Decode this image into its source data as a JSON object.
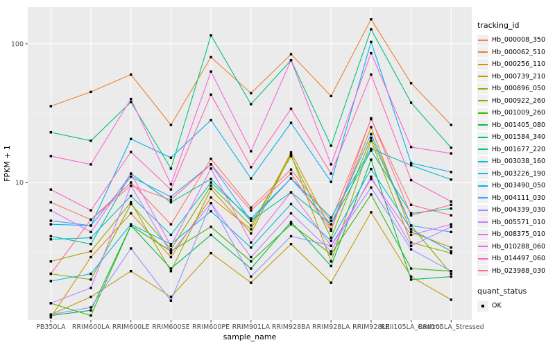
{
  "chart_data": {
    "type": "line",
    "title": "",
    "xlabel": "sample_name",
    "ylabel": "FPKM + 1",
    "y_scale": "log10",
    "y_ticks": [
      100,
      10
    ],
    "y_tick_labels": [
      "100",
      "10"
    ],
    "y_minor": [
      31.62,
      3.162
    ],
    "ylim": [
      1.02,
      185
    ],
    "grid": true,
    "legend_position": "right",
    "categories": [
      "PB350LA",
      "RRIM600LA",
      "RRIM600LE",
      "RRIM600SE",
      "RRIM600PE",
      "RRIM901LA",
      "RRIM928BA",
      "RRIM928LA",
      "RRIM928LE",
      "RRII105LA_Control",
      "RRII105LA_Stressed"
    ],
    "series": [
      {
        "name": "Hb_000008_350",
        "color": "#F8766D",
        "values": [
          7.2,
          5.4,
          10.0,
          5.0,
          14.8,
          6.6,
          12.4,
          5.3,
          28.6,
          6.9,
          5.8
        ]
      },
      {
        "name": "Hb_000062_510",
        "color": "#EA8331",
        "values": [
          35.5,
          45,
          60,
          26,
          80,
          44,
          84,
          42,
          150,
          52,
          26
        ]
      },
      {
        "name": "Hb_000256_110",
        "color": "#D89000",
        "values": [
          1.07,
          2.9,
          6.0,
          2.9,
          7.8,
          4.6,
          16.5,
          4.6,
          25,
          4.4,
          3.4
        ]
      },
      {
        "name": "Hb_000739_210",
        "color": "#C09B00",
        "values": [
          1.12,
          1.5,
          2.3,
          1.5,
          3.1,
          1.9,
          3.6,
          1.9,
          6.1,
          2.1,
          1.43
        ]
      },
      {
        "name": "Hb_000896_050",
        "color": "#A3A500",
        "values": [
          2.7,
          3.2,
          7.2,
          2.3,
          9.0,
          4.3,
          16.0,
          2.7,
          20,
          3.7,
          3.1
        ]
      },
      {
        "name": "Hb_000922_260",
        "color": "#7CAE00",
        "values": [
          2.2,
          2.0,
          7.0,
          3.3,
          9.5,
          4.9,
          15.5,
          4.0,
          21,
          4.9,
          2.2
        ]
      },
      {
        "name": "Hb_001009_260",
        "color": "#39B600",
        "values": [
          1.35,
          1.1,
          4.9,
          3.2,
          4.8,
          2.7,
          5.0,
          3.05,
          8.2,
          2.4,
          2.3
        ]
      },
      {
        "name": "Hb_001405_080",
        "color": "#00BB4E",
        "values": [
          1.1,
          1.2,
          4.9,
          2.4,
          4.2,
          2.4,
          5.2,
          2.5,
          14.6,
          2.0,
          2.1
        ]
      },
      {
        "name": "Hb_001584_340",
        "color": "#00BF7D",
        "values": [
          23,
          20,
          38,
          12.6,
          115,
          36.7,
          76,
          18.4,
          127,
          37.6,
          17.8
        ]
      },
      {
        "name": "Hb_001677_220",
        "color": "#00C1A3",
        "values": [
          4.1,
          3.6,
          11.6,
          7.2,
          10.6,
          5.3,
          8.5,
          5.0,
          17,
          6.0,
          6.5
        ]
      },
      {
        "name": "Hb_003038_160",
        "color": "#00BFC4",
        "values": [
          3.9,
          4.0,
          8.0,
          4.2,
          10.0,
          5.5,
          10.7,
          5.6,
          17.5,
          13.3,
          10.5
        ]
      },
      {
        "name": "Hb_003226_190",
        "color": "#00BAE0",
        "values": [
          1.95,
          2.2,
          5.0,
          3.6,
          6.2,
          3.4,
          7.0,
          3.8,
          12.5,
          4.6,
          3.2
        ]
      },
      {
        "name": "Hb_003490_050",
        "color": "#00B0F6",
        "values": [
          5.0,
          4.9,
          20.6,
          15.1,
          28.2,
          10.7,
          26.9,
          10.1,
          103,
          13.8,
          11.9
        ]
      },
      {
        "name": "Hb_004111_030",
        "color": "#35A2FF",
        "values": [
          5.3,
          4.9,
          11.0,
          7.9,
          13.5,
          5.3,
          10.7,
          5.0,
          22.3,
          4.9,
          4.4
        ]
      },
      {
        "name": "Hb_004339_030",
        "color": "#9590FF",
        "values": [
          1.12,
          1.26,
          3.35,
          1.41,
          7.1,
          2.1,
          4.1,
          3.5,
          9.2,
          3.3,
          2.3
        ]
      },
      {
        "name": "Hb_005571_010",
        "color": "#C77CFF",
        "values": [
          1.35,
          1.74,
          9.5,
          3.1,
          7.1,
          2.9,
          6.0,
          3.2,
          11.0,
          3.5,
          4.8
        ]
      },
      {
        "name": "Hb_008375_010",
        "color": "#E76BF3",
        "values": [
          6.3,
          4.4,
          11.6,
          3.5,
          12.6,
          3.7,
          8.5,
          3.5,
          10.6,
          4.2,
          5.0
        ]
      },
      {
        "name": "Hb_010288_060",
        "color": "#FA62DB",
        "values": [
          15.5,
          13.5,
          40,
          9.7,
          63,
          16.8,
          76,
          13.5,
          85.5,
          18,
          16.2
        ]
      },
      {
        "name": "Hb_014497_060",
        "color": "#FF62BC",
        "values": [
          8.9,
          6.3,
          16.6,
          8.9,
          43,
          12.9,
          34,
          11.6,
          60,
          10.4,
          7.3
        ]
      },
      {
        "name": "Hb_023988_030",
        "color": "#FF6A98",
        "values": [
          2.2,
          5.4,
          9.5,
          7.5,
          13.5,
          6.3,
          11.6,
          4.5,
          29,
          5.8,
          6.9
        ]
      }
    ],
    "legend": {
      "color_title": "tracking_id",
      "shape_title": "quant_status",
      "shape_label": "OK"
    },
    "colors": {
      "panel_bg": "#EBEBEB",
      "grid_major": "#FFFFFF",
      "grid_minor": "#FFFFFF",
      "tick_text": "#4D4D4D",
      "axis_title": "#000000",
      "point": "#000000",
      "legend_key_bg": "#F0F0F0"
    }
  }
}
